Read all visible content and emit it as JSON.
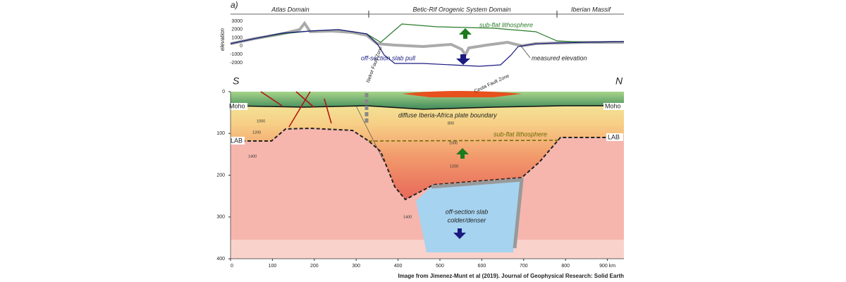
{
  "panel_label": "a)",
  "domains": [
    "Atlas Domain",
    "Betic-Rif Orogenic System Domain",
    "Iberian Massif"
  ],
  "elevation_axis": {
    "label": "elevation",
    "ticks": [
      "3000",
      "2000",
      "1000",
      "0",
      "-1000",
      "-2000"
    ]
  },
  "elevation_annotations": {
    "up": "sub-flat lithosphere",
    "down": "off-section slab pull",
    "measured": "measured elevation"
  },
  "section": {
    "south": "S",
    "north": "N",
    "depth_ticks": [
      "0",
      "100",
      "200",
      "300",
      "400"
    ],
    "distance_ticks": [
      "0",
      "100",
      "200",
      "300",
      "400",
      "500",
      "600",
      "700",
      "800",
      "900 km"
    ],
    "nekor": "Nekor Fault Zone",
    "ceuta": "Ceuta Fault Zone",
    "moho_left": "Moho",
    "moho_right": "Moho",
    "boundary": "diffuse Iberia-Africa plate boundary",
    "subflat": "sub-flat lithosphere",
    "lab_left": "LAB",
    "lab_right": "LAB",
    "slab": [
      "off-section slab",
      "colder/denser"
    ],
    "isotherms": [
      "1000",
      "1200",
      "1400",
      "800",
      "1000",
      "1200",
      "1400"
    ]
  },
  "caption": "Image from Jimenez-Munt et al (2019). Journal of Geophysical Research: Solid Earth"
}
